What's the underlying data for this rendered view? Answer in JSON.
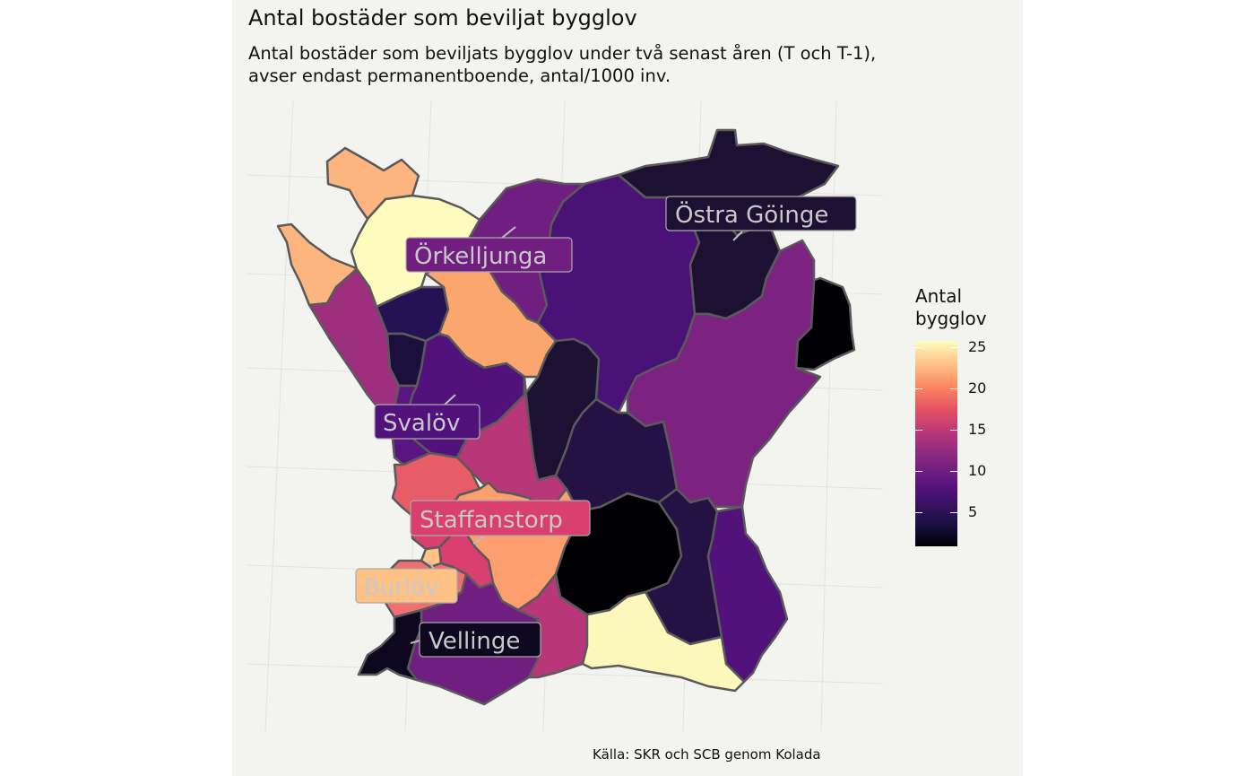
{
  "title": "Antal bostäder som beviljat bygglov",
  "subtitle_line1": "Antal bostäder som beviljats bygglov under två senast åren (T och T-1),",
  "subtitle_line2": "avser endast permanentboende, antal/1000 inv.",
  "caption": "Källa: SKR och SCB genom Kolada",
  "legend": {
    "title_line1": "Antal",
    "title_line2": "bygglov",
    "ticks": [
      "25",
      "20",
      "15",
      "10",
      "5"
    ],
    "colors": [
      "#000004",
      "#1d1147",
      "#51127c",
      "#822681",
      "#b73779",
      "#e75263",
      "#fc8961",
      "#fec287",
      "#fcfdbf"
    ]
  },
  "labels": {
    "ostra_goinge": "Östra Göinge",
    "orkelljunga": "Örkelljunga",
    "svalov": "Svalöv",
    "staffanstorp": "Staffanstorp",
    "burlov": "Burlöv",
    "vellinge": "Vellinge"
  }
}
